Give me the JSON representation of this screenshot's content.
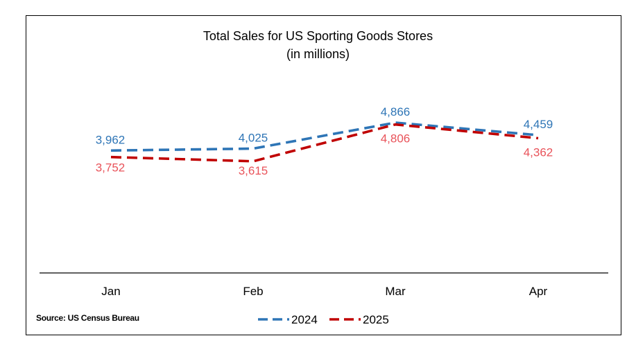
{
  "chart_data": {
    "type": "line",
    "title": "Total Sales for US Sporting Goods Stores",
    "subtitle": "(in millions)",
    "categories": [
      "Jan",
      "Feb",
      "Mar",
      "Apr"
    ],
    "series": [
      {
        "name": "2024",
        "values": [
          3962,
          4025,
          4866,
          4459
        ],
        "labels": [
          "3,962",
          "4,025",
          "4,866",
          "4,459"
        ],
        "color": "#2e75b6",
        "label_color": "#2e75b6"
      },
      {
        "name": "2025",
        "values": [
          3752,
          3615,
          4806,
          4362
        ],
        "labels": [
          "3,752",
          "3,615",
          "4,806",
          "4,362"
        ],
        "color": "#c00000",
        "label_color": "#e9535a"
      }
    ],
    "ylim": [
      0,
      5600
    ],
    "line_style": "dashed",
    "legend_position": "bottom",
    "grid": false
  },
  "source": "Source: US Census Bureau"
}
